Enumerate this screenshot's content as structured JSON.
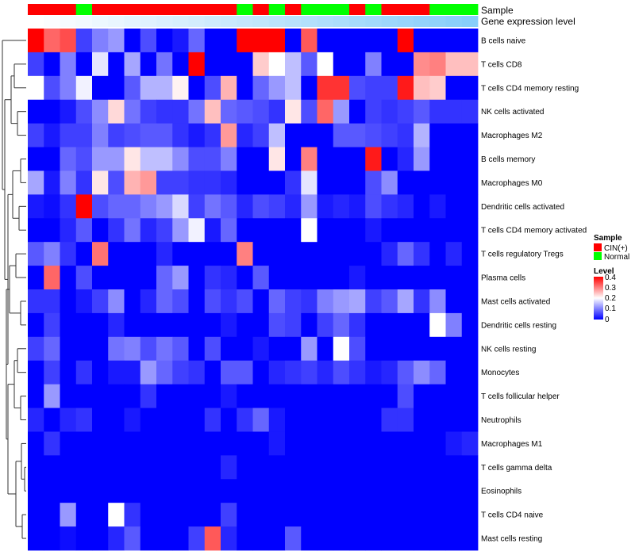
{
  "chart_data": {
    "type": "heatmap",
    "annotation_tracks": {
      "sample_track_label": "Sample",
      "level_track_label": "Gene expression level"
    },
    "rows": [
      "B cells naive",
      "T cells CD8",
      "T cells CD4 memory resting",
      "NK cells activated",
      "Macrophages M2",
      "B cells memory",
      "Macrophages M0",
      "Dendritic cells activated",
      "T cells CD4 memory activated",
      "T cells regulatory  Tregs",
      "Plasma cells",
      "Mast cells activated",
      "Dendritic cells resting",
      "NK cells resting",
      "Monocytes",
      "T cells follicular helper",
      "Neutrophils",
      "Macrophages M1",
      "T cells gamma delta",
      "Eosinophils",
      "T cells CD4 naive",
      "Mast cells resting"
    ],
    "sample_groups": [
      "CIN(+)",
      "CIN(+)",
      "CIN(+)",
      "Normal",
      "CIN(+)",
      "CIN(+)",
      "CIN(+)",
      "CIN(+)",
      "CIN(+)",
      "CIN(+)",
      "CIN(+)",
      "CIN(+)",
      "CIN(+)",
      "Normal",
      "CIN(+)",
      "Normal",
      "CIN(+)",
      "Normal",
      "Normal",
      "Normal",
      "CIN(+)",
      "Normal",
      "CIN(+)",
      "CIN(+)",
      "CIN(+)",
      "Normal",
      "Normal",
      "Normal"
    ],
    "values": [
      [
        0.4,
        0.32,
        0.34,
        0.05,
        0.1,
        0.12,
        0.0,
        0.06,
        0.0,
        0.02,
        0.08,
        0.0,
        0.0,
        0.4,
        0.4,
        0.4,
        0.0,
        0.33,
        0.0,
        0.0,
        0.0,
        0.0,
        0.0,
        0.4,
        0.0,
        0.0,
        0.0,
        0.0
      ],
      [
        0.05,
        0.0,
        0.1,
        0.0,
        0.18,
        0.0,
        0.13,
        0.0,
        0.09,
        0.0,
        0.4,
        0.0,
        0.0,
        0.0,
        0.24,
        0.2,
        0.15,
        0.07,
        0.2,
        0.0,
        0.0,
        0.1,
        0.0,
        0.0,
        0.29,
        0.3,
        0.25,
        0.25
      ],
      [
        0.2,
        0.06,
        0.1,
        0.19,
        0.0,
        0.0,
        0.07,
        0.14,
        0.14,
        0.21,
        0.0,
        0.06,
        0.26,
        0.0,
        0.08,
        0.12,
        0.15,
        0.0,
        0.36,
        0.36,
        0.06,
        0.05,
        0.05,
        0.38,
        0.25,
        0.24,
        0.0,
        0.0
      ],
      [
        0.0,
        0.0,
        0.02,
        0.06,
        0.11,
        0.23,
        0.09,
        0.05,
        0.04,
        0.04,
        0.09,
        0.25,
        0.08,
        0.07,
        0.06,
        0.04,
        0.22,
        0.06,
        0.32,
        0.12,
        0.0,
        0.05,
        0.04,
        0.05,
        0.07,
        0.04,
        0.04,
        0.04
      ],
      [
        0.05,
        0.02,
        0.05,
        0.05,
        0.1,
        0.05,
        0.06,
        0.07,
        0.07,
        0.04,
        0.02,
        0.04,
        0.28,
        0.03,
        0.05,
        0.15,
        0.0,
        0.0,
        0.0,
        0.07,
        0.07,
        0.06,
        0.05,
        0.04,
        0.14,
        0.0,
        0.0,
        0.0
      ],
      [
        0.0,
        0.0,
        0.08,
        0.06,
        0.12,
        0.12,
        0.22,
        0.15,
        0.15,
        0.11,
        0.06,
        0.06,
        0.1,
        0.0,
        0.0,
        0.22,
        0.0,
        0.3,
        0.0,
        0.0,
        0.0,
        0.38,
        0.0,
        0.03,
        0.12,
        0.0,
        0.0,
        0.0
      ],
      [
        0.13,
        0.02,
        0.1,
        0.04,
        0.22,
        0.06,
        0.26,
        0.28,
        0.05,
        0.05,
        0.04,
        0.04,
        0.03,
        0.0,
        0.0,
        0.0,
        0.04,
        0.18,
        0.0,
        0.0,
        0.0,
        0.06,
        0.11,
        0.0,
        0.0,
        0.0,
        0.0,
        0.0
      ],
      [
        0.02,
        0.01,
        0.04,
        0.4,
        0.06,
        0.08,
        0.08,
        0.1,
        0.12,
        0.17,
        0.05,
        0.09,
        0.07,
        0.03,
        0.06,
        0.05,
        0.03,
        0.12,
        0.02,
        0.03,
        0.02,
        0.06,
        0.04,
        0.03,
        0.0,
        0.02,
        0.0,
        0.0
      ],
      [
        0.0,
        0.0,
        0.03,
        0.07,
        0.0,
        0.04,
        0.09,
        0.03,
        0.05,
        0.12,
        0.19,
        0.02,
        0.08,
        0.0,
        0.0,
        0.0,
        0.0,
        0.2,
        0.0,
        0.0,
        0.0,
        0.02,
        0.0,
        0.0,
        0.0,
        0.0,
        0.0,
        0.0
      ],
      [
        0.07,
        0.1,
        0.04,
        0.0,
        0.31,
        0.0,
        0.0,
        0.0,
        0.03,
        0.0,
        0.0,
        0.0,
        0.0,
        0.3,
        0.0,
        0.0,
        0.0,
        0.0,
        0.0,
        0.0,
        0.0,
        0.0,
        0.03,
        0.08,
        0.04,
        0.0,
        0.03,
        0.0
      ],
      [
        0.0,
        0.32,
        0.0,
        0.06,
        0.0,
        0.0,
        0.0,
        0.0,
        0.08,
        0.12,
        0.0,
        0.04,
        0.03,
        0.0,
        0.07,
        0.0,
        0.0,
        0.0,
        0.0,
        0.0,
        0.02,
        0.0,
        0.0,
        0.0,
        0.0,
        0.0,
        0.0,
        0.0
      ],
      [
        0.04,
        0.04,
        0.0,
        0.02,
        0.05,
        0.11,
        0.0,
        0.03,
        0.08,
        0.06,
        0.0,
        0.06,
        0.04,
        0.06,
        0.0,
        0.08,
        0.05,
        0.04,
        0.1,
        0.12,
        0.13,
        0.05,
        0.07,
        0.13,
        0.04,
        0.11,
        0.0,
        0.0
      ],
      [
        0.0,
        0.05,
        0.0,
        0.0,
        0.0,
        0.03,
        0.0,
        0.0,
        0.0,
        0.0,
        0.0,
        0.0,
        0.02,
        0.0,
        0.0,
        0.06,
        0.05,
        0.0,
        0.05,
        0.08,
        0.04,
        0.0,
        0.0,
        0.0,
        0.0,
        0.2,
        0.1,
        0.0
      ],
      [
        0.05,
        0.08,
        0.0,
        0.0,
        0.0,
        0.09,
        0.1,
        0.06,
        0.09,
        0.07,
        0.0,
        0.06,
        0.0,
        0.0,
        0.02,
        0.0,
        0.0,
        0.12,
        0.0,
        0.2,
        0.06,
        0.0,
        0.0,
        0.0,
        0.0,
        0.0,
        0.0,
        0.0
      ],
      [
        0.0,
        0.05,
        0.0,
        0.04,
        0.0,
        0.02,
        0.02,
        0.12,
        0.08,
        0.05,
        0.04,
        0.0,
        0.07,
        0.07,
        0.0,
        0.03,
        0.04,
        0.05,
        0.03,
        0.06,
        0.04,
        0.02,
        0.03,
        0.07,
        0.11,
        0.08,
        0.0,
        0.0
      ],
      [
        0.0,
        0.12,
        0.0,
        0.0,
        0.0,
        0.0,
        0.0,
        0.04,
        0.0,
        0.0,
        0.0,
        0.0,
        0.02,
        0.0,
        0.0,
        0.0,
        0.0,
        0.0,
        0.0,
        0.0,
        0.0,
        0.0,
        0.0,
        0.06,
        0.0,
        0.0,
        0.0,
        0.0
      ],
      [
        0.03,
        0.0,
        0.03,
        0.04,
        0.0,
        0.0,
        0.02,
        0.0,
        0.0,
        0.0,
        0.0,
        0.04,
        0.0,
        0.04,
        0.08,
        0.02,
        0.0,
        0.0,
        0.0,
        0.0,
        0.0,
        0.0,
        0.04,
        0.04,
        0.0,
        0.0,
        0.0,
        0.0
      ],
      [
        0.0,
        0.04,
        0.0,
        0.0,
        0.0,
        0.0,
        0.0,
        0.0,
        0.0,
        0.0,
        0.0,
        0.0,
        0.0,
        0.0,
        0.0,
        0.02,
        0.0,
        0.0,
        0.0,
        0.0,
        0.0,
        0.0,
        0.0,
        0.0,
        0.0,
        0.0,
        0.02,
        0.03
      ],
      [
        0.0,
        0.0,
        0.0,
        0.0,
        0.0,
        0.0,
        0.0,
        0.0,
        0.0,
        0.0,
        0.0,
        0.0,
        0.03,
        0.0,
        0.0,
        0.0,
        0.0,
        0.0,
        0.0,
        0.0,
        0.0,
        0.0,
        0.0,
        0.0,
        0.0,
        0.0,
        0.0,
        0.0
      ],
      [
        0.0,
        0.0,
        0.0,
        0.0,
        0.0,
        0.0,
        0.0,
        0.0,
        0.0,
        0.0,
        0.0,
        0.0,
        0.0,
        0.0,
        0.0,
        0.0,
        0.0,
        0.0,
        0.0,
        0.0,
        0.0,
        0.0,
        0.0,
        0.0,
        0.0,
        0.0,
        0.0,
        0.0
      ],
      [
        0.0,
        0.0,
        0.12,
        0.0,
        0.0,
        0.2,
        0.04,
        0.0,
        0.0,
        0.0,
        0.0,
        0.0,
        0.05,
        0.0,
        0.0,
        0.0,
        0.0,
        0.0,
        0.0,
        0.0,
        0.0,
        0.0,
        0.0,
        0.0,
        0.0,
        0.0,
        0.0,
        0.0
      ],
      [
        0.0,
        0.0,
        0.01,
        0.0,
        0.0,
        0.03,
        0.07,
        0.0,
        0.0,
        0.0,
        0.05,
        0.33,
        0.03,
        0.0,
        0.0,
        0.0,
        0.07,
        0.0,
        0.0,
        0.0,
        0.0,
        0.0,
        0.0,
        0.0,
        0.0,
        0.0,
        0.0,
        0.0
      ]
    ],
    "level_track": [
      0.0,
      0.01,
      0.02,
      0.03,
      0.04,
      0.05,
      0.06,
      0.07,
      0.08,
      0.09,
      0.1,
      0.11,
      0.12,
      0.13,
      0.14,
      0.15,
      0.16,
      0.17,
      0.18,
      0.19,
      0.2,
      0.21,
      0.22,
      0.23,
      0.24,
      0.25,
      0.26,
      0.27
    ],
    "color_scale": {
      "low": "#0000ff",
      "mid": "#ffffff",
      "high": "#ff0000",
      "min": 0,
      "max": 0.4
    },
    "sample_colors": {
      "CIN(+)": "#ff0000",
      "Normal": "#00ff00"
    },
    "level_track_colors": {
      "low": "#ffffff",
      "high": "#87cefa"
    },
    "legend": {
      "sample_title": "Sample",
      "sample_entries": [
        "CIN(+)",
        "Normal"
      ],
      "level_title": "Level",
      "level_ticks": [
        "0.4",
        "0.3",
        "0.2",
        "0.1",
        "0"
      ],
      "placement": "right"
    }
  }
}
